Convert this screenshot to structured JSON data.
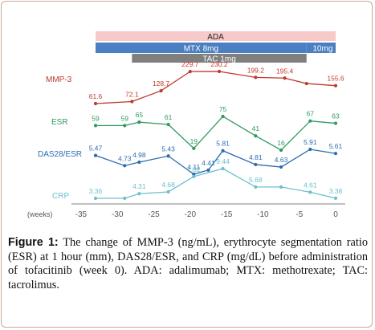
{
  "chart_data": {
    "type": "line",
    "xlabel": "(weeks)",
    "x_ticks": [
      -35,
      -30,
      -25,
      -20,
      -15,
      -10,
      -5,
      0
    ],
    "xlim": [
      -35,
      0
    ],
    "grid": false,
    "treatment_bars": [
      {
        "label": "ADA",
        "start": -33,
        "end": 0,
        "color": "#f7c9c9",
        "text_color": "#222222"
      },
      {
        "label": "MTX 8mg",
        "start": -33,
        "end": -4,
        "color": "#4a7fc1",
        "text_color": "#ffffff"
      },
      {
        "label": "10mg",
        "start": -4,
        "end": 0,
        "color": "#4a7fc1",
        "text_color": "#ffffff"
      },
      {
        "label": "TAC 1mg",
        "start": -28,
        "end": -4,
        "color": "#7f7f7f",
        "text_color": "#ffffff"
      }
    ],
    "series": [
      {
        "name": "MMP-3",
        "color": "#c0392b",
        "x": [
          -33,
          -28,
          -24,
          -20,
          -16,
          -11,
          -7,
          -4,
          0
        ],
        "values": [
          "61.6",
          "72.1",
          "128.7",
          "229.7",
          "230.2",
          "199.2",
          "195.4",
          "166.7",
          "155.6"
        ],
        "labels": [
          "61.6",
          "72.1",
          "128.7",
          "229.7",
          "230.2",
          "199.2",
          "195.4",
          "",
          "155.6"
        ]
      },
      {
        "name": "ESR",
        "color": "#2e9a5e",
        "x": [
          -33,
          -29,
          -27,
          -23,
          -19.5,
          -15.5,
          -11,
          -7.5,
          -3.5,
          0
        ],
        "values": [
          59,
          59,
          65,
          61,
          19,
          75,
          41,
          16,
          67,
          63
        ]
      },
      {
        "name": "DAS28/ESR",
        "color": "#2b6cb0",
        "x": [
          -33,
          -29,
          -27,
          -23,
          -19.5,
          -17.5,
          -15.5,
          -11,
          -7.5,
          -3.5,
          0
        ],
        "values": [
          5.47,
          4.73,
          4.98,
          5.43,
          4.11,
          4.41,
          5.81,
          4.81,
          4.63,
          5.91,
          5.61
        ]
      },
      {
        "name": "CRP",
        "color": "#6cc0cc",
        "x": [
          -33,
          -29,
          -27,
          -23,
          -19.5,
          -15.5,
          -11,
          -7.5,
          -3.5,
          0
        ],
        "values": [
          3.36,
          3.36,
          4.31,
          4.68,
          7.82,
          9.44,
          5.68,
          5.68,
          4.61,
          3.38
        ],
        "labels": [
          "3.36",
          "",
          "4.31",
          "4.68",
          "7.82",
          "9.44",
          "5.68",
          "",
          "4.61",
          "3.38"
        ]
      }
    ]
  },
  "caption": {
    "label": "Figure 1:",
    "text": " The change of MMP-3 (ng/mL), erythrocyte segmentation ratio (ESR) at 1 hour (mm), DAS28/ESR, and CRP (mg/dL) before administration of tofacitinib (week 0). ADA: adalimumab; MTX: methotrexate; TAC: tacrolimus."
  }
}
